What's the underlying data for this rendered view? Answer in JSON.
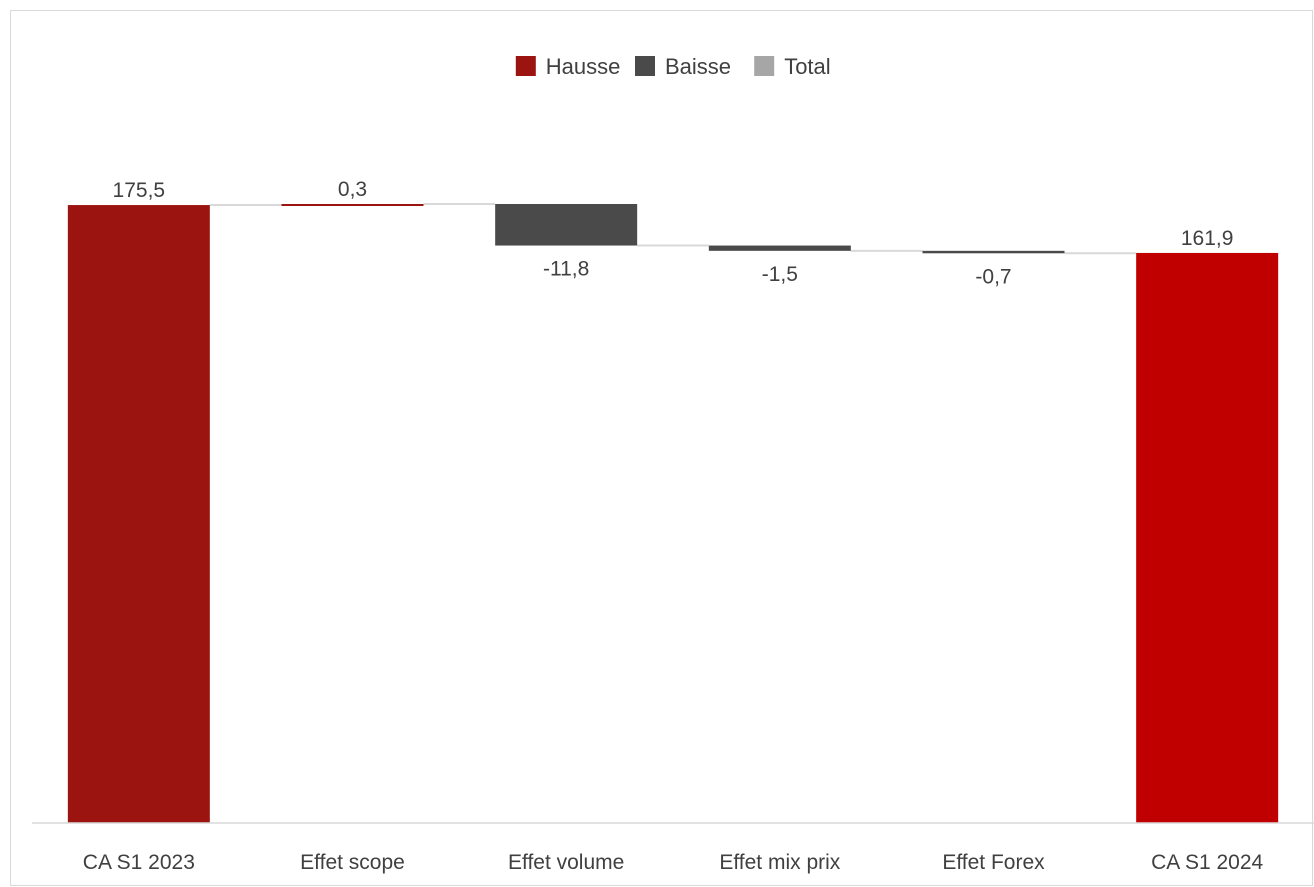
{
  "chart_data": {
    "type": "waterfall",
    "legend": [
      {
        "label": "Hausse",
        "color": "#9b1410"
      },
      {
        "label": "Baisse",
        "color": "#4a4a4a"
      },
      {
        "label": "Total",
        "color": "#a6a6a6"
      }
    ],
    "legend_position": "top-center",
    "categories": [
      "CA S1 2023",
      "Effet scope",
      "Effet volume",
      "Effet mix prix",
      "Effet Forex",
      "CA S1 2024"
    ],
    "values": [
      175.5,
      0.3,
      -11.8,
      -1.5,
      -0.7,
      161.9
    ],
    "labels": [
      "175,5",
      "0,3",
      "-11,8",
      "-1,5",
      "-0,7",
      "161,9"
    ],
    "kinds": [
      "total",
      "increase",
      "decrease",
      "decrease",
      "decrease",
      "total"
    ],
    "colors": [
      "#9b1410",
      "#9b1410",
      "#4a4a4a",
      "#4a4a4a",
      "#4a4a4a",
      "#c00000"
    ],
    "connector_color": "#d9d9d9",
    "ylim": [
      0,
      175.8
    ],
    "grid": false
  }
}
